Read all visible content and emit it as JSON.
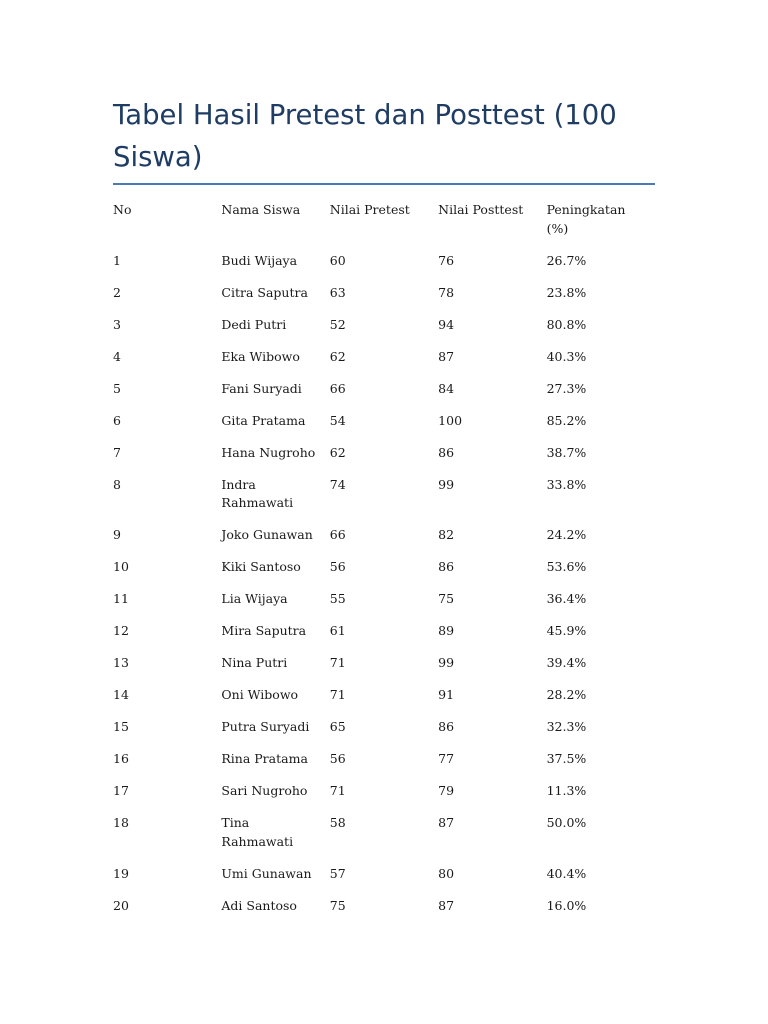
{
  "document": {
    "title": "Tabel Hasil Pretest dan Posttest (100 Siswa)"
  },
  "table": {
    "headers": {
      "no": "No",
      "nama": "Nama Siswa",
      "pretest": "Nilai Pretest",
      "posttest": "Nilai Posttest",
      "peningkatan": "Peningkatan (%)"
    },
    "rows": [
      {
        "no": "1",
        "nama": "Budi Wijaya",
        "pretest": "60",
        "posttest": "76",
        "peningkatan": "26.7%"
      },
      {
        "no": "2",
        "nama": "Citra Saputra",
        "pretest": "63",
        "posttest": "78",
        "peningkatan": "23.8%"
      },
      {
        "no": "3",
        "nama": "Dedi Putri",
        "pretest": "52",
        "posttest": "94",
        "peningkatan": "80.8%"
      },
      {
        "no": "4",
        "nama": "Eka Wibowo",
        "pretest": "62",
        "posttest": "87",
        "peningkatan": "40.3%"
      },
      {
        "no": "5",
        "nama": "Fani Suryadi",
        "pretest": "66",
        "posttest": "84",
        "peningkatan": "27.3%"
      },
      {
        "no": "6",
        "nama": "Gita Pratama",
        "pretest": "54",
        "posttest": "100",
        "peningkatan": "85.2%"
      },
      {
        "no": "7",
        "nama": "Hana Nugroho",
        "pretest": "62",
        "posttest": "86",
        "peningkatan": "38.7%"
      },
      {
        "no": "8",
        "nama": "Indra Rahmawati",
        "pretest": "74",
        "posttest": "99",
        "peningkatan": "33.8%"
      },
      {
        "no": "9",
        "nama": "Joko Gunawan",
        "pretest": "66",
        "posttest": "82",
        "peningkatan": "24.2%"
      },
      {
        "no": "10",
        "nama": "Kiki Santoso",
        "pretest": "56",
        "posttest": "86",
        "peningkatan": "53.6%"
      },
      {
        "no": "11",
        "nama": "Lia Wijaya",
        "pretest": "55",
        "posttest": "75",
        "peningkatan": "36.4%"
      },
      {
        "no": "12",
        "nama": "Mira Saputra",
        "pretest": "61",
        "posttest": "89",
        "peningkatan": "45.9%"
      },
      {
        "no": "13",
        "nama": "Nina Putri",
        "pretest": "71",
        "posttest": "99",
        "peningkatan": "39.4%"
      },
      {
        "no": "14",
        "nama": "Oni Wibowo",
        "pretest": "71",
        "posttest": "91",
        "peningkatan": "28.2%"
      },
      {
        "no": "15",
        "nama": "Putra Suryadi",
        "pretest": "65",
        "posttest": "86",
        "peningkatan": "32.3%"
      },
      {
        "no": "16",
        "nama": "Rina Pratama",
        "pretest": "56",
        "posttest": "77",
        "peningkatan": "37.5%"
      },
      {
        "no": "17",
        "nama": "Sari Nugroho",
        "pretest": "71",
        "posttest": "79",
        "peningkatan": "11.3%"
      },
      {
        "no": "18",
        "nama": "Tina Rahmawati",
        "pretest": "58",
        "posttest": "87",
        "peningkatan": "50.0%"
      },
      {
        "no": "19",
        "nama": "Umi Gunawan",
        "pretest": "57",
        "posttest": "80",
        "peningkatan": "40.4%"
      },
      {
        "no": "20",
        "nama": "Adi Santoso",
        "pretest": "75",
        "posttest": "87",
        "peningkatan": "16.0%"
      }
    ]
  },
  "colors": {
    "title": "#1f3d64",
    "rule": "#4a7ab8",
    "text": "#1a1a1a"
  }
}
